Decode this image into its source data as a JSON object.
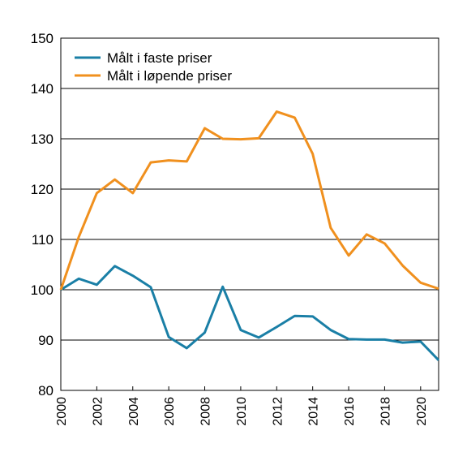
{
  "chart_data": {
    "type": "line",
    "title": "",
    "xlabel": "",
    "ylabel": "",
    "x": [
      2000,
      2001,
      2002,
      2003,
      2004,
      2005,
      2006,
      2007,
      2008,
      2009,
      2010,
      2011,
      2012,
      2013,
      2014,
      2015,
      2016,
      2017,
      2018,
      2019,
      2020,
      2021
    ],
    "xlim": [
      2000,
      2021
    ],
    "ylim": [
      80,
      150
    ],
    "yticks": [
      "80",
      "90",
      "100",
      "110",
      "120",
      "130",
      "140",
      "150"
    ],
    "xticks": [
      "2000",
      "2002",
      "2004",
      "2006",
      "2008",
      "2010",
      "2012",
      "2014",
      "2016",
      "2018",
      "2020"
    ],
    "grid": "horizontal",
    "legend": "top-left",
    "series": [
      {
        "name": "Målt i faste priser",
        "color": "#1a7fa6",
        "values": [
          100,
          102.2,
          101,
          104.7,
          102.8,
          100.5,
          90.6,
          88.4,
          91.5,
          100.6,
          92,
          90.5,
          92.6,
          94.8,
          94.7,
          92,
          90.2,
          90.1,
          90.1,
          89.5,
          89.7,
          86
        ]
      },
      {
        "name": "Målt i løpende priser",
        "color": "#f0901e",
        "values": [
          100,
          110.5,
          119.2,
          121.9,
          119.2,
          125.3,
          125.7,
          125.5,
          132.1,
          130,
          129.9,
          130.1,
          135.4,
          134.2,
          127,
          112.3,
          106.8,
          111,
          109.2,
          104.8,
          101.4,
          100.2
        ]
      }
    ]
  }
}
